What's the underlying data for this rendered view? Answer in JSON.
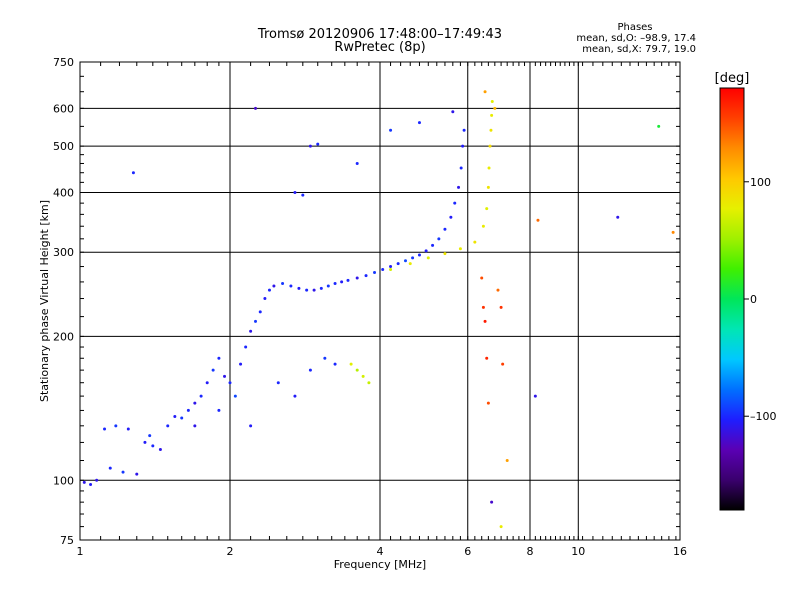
{
  "figure": {
    "title": "Tromsø 20120906 17:48:00–17:49:43",
    "subtitle": "RwPretec (8p)",
    "phases_label": "Phases",
    "phases_o": "mean, sd,O: –98.9, 17.4",
    "phases_x": "mean, sd,X:  79.7, 19.0"
  },
  "colorbar": {
    "label": "[deg]",
    "ticks": [
      {
        "value": 100,
        "label": "100"
      },
      {
        "value": 0,
        "label": "0"
      },
      {
        "value": -100,
        "label": "–100"
      }
    ],
    "range": [
      -180,
      180
    ],
    "colors": [
      "#000000",
      "#3a006e",
      "#5a00b4",
      "#1e1eff",
      "#0070ff",
      "#00c8ff",
      "#00e6b4",
      "#00e65a",
      "#40f000",
      "#a0f000",
      "#e6f000",
      "#ffc800",
      "#ff8c00",
      "#ff4000",
      "#ff0000"
    ]
  },
  "chart_data": {
    "type": "scatter",
    "xlabel": "Frequency [MHz]",
    "ylabel": "Stationary phase Virtual Height [km]",
    "xscale": "log",
    "yscale": "log",
    "xlim": [
      1,
      16
    ],
    "ylim": [
      75,
      750
    ],
    "xticks": [
      {
        "value": 1,
        "label": "1"
      },
      {
        "value": 2,
        "label": "2"
      },
      {
        "value": 4,
        "label": "4"
      },
      {
        "value": 6,
        "label": "6"
      },
      {
        "value": 8,
        "label": "8"
      },
      {
        "value": 10,
        "label": "10"
      },
      {
        "value": 16,
        "label": "16"
      }
    ],
    "yticks": [
      {
        "value": 75,
        "label": "75"
      },
      {
        "value": 100,
        "label": "100"
      },
      {
        "value": 200,
        "label": "200"
      },
      {
        "value": 300,
        "label": "300"
      },
      {
        "value": 400,
        "label": "400"
      },
      {
        "value": 500,
        "label": "500"
      },
      {
        "value": 600,
        "label": "600"
      },
      {
        "value": 750,
        "label": "750"
      }
    ],
    "xgrid": [
      1,
      2,
      4,
      6,
      8,
      10,
      16
    ],
    "ygrid": [
      75,
      100,
      200,
      300,
      400,
      500,
      600,
      750
    ],
    "grid": true,
    "color_by": "phase (deg)",
    "series": [
      {
        "points": [
          [
            1.02,
            99,
            -110
          ],
          [
            1.05,
            98,
            -105
          ],
          [
            1.08,
            100,
            -110
          ],
          [
            1.15,
            106,
            -100
          ],
          [
            1.22,
            104,
            -95
          ],
          [
            1.3,
            103,
            -110
          ],
          [
            1.12,
            128,
            -100
          ],
          [
            1.18,
            130,
            -95
          ],
          [
            1.25,
            128,
            -105
          ],
          [
            1.28,
            440,
            -100
          ],
          [
            1.35,
            120,
            -105
          ],
          [
            1.4,
            118,
            -100
          ],
          [
            1.45,
            116,
            -110
          ],
          [
            1.38,
            124,
            -95
          ],
          [
            1.5,
            130,
            -100
          ],
          [
            1.55,
            136,
            -105
          ],
          [
            1.6,
            135,
            -95
          ],
          [
            1.65,
            140,
            -100
          ],
          [
            1.7,
            145,
            -110
          ],
          [
            1.75,
            150,
            -100
          ],
          [
            1.8,
            160,
            -105
          ],
          [
            1.85,
            170,
            -95
          ],
          [
            1.9,
            180,
            -100
          ],
          [
            1.95,
            165,
            -110
          ],
          [
            2.0,
            160,
            -100
          ],
          [
            2.05,
            150,
            -90
          ],
          [
            2.1,
            175,
            -105
          ],
          [
            2.15,
            190,
            -100
          ],
          [
            2.2,
            205,
            -110
          ],
          [
            2.25,
            215,
            -95
          ],
          [
            2.3,
            225,
            -100
          ],
          [
            2.35,
            240,
            -105
          ],
          [
            2.4,
            250,
            -100
          ],
          [
            2.45,
            255,
            -110
          ],
          [
            2.55,
            258,
            -95
          ],
          [
            2.65,
            255,
            -100
          ],
          [
            2.75,
            252,
            -105
          ],
          [
            2.85,
            250,
            -100
          ],
          [
            2.95,
            250,
            -110
          ],
          [
            3.05,
            252,
            -100
          ],
          [
            3.15,
            255,
            -95
          ],
          [
            3.25,
            258,
            -100
          ],
          [
            3.35,
            260,
            -105
          ],
          [
            3.45,
            262,
            -100
          ],
          [
            3.6,
            265,
            -110
          ],
          [
            3.75,
            268,
            -100
          ],
          [
            3.9,
            272,
            -95
          ],
          [
            4.05,
            276,
            -100
          ],
          [
            4.2,
            280,
            -105
          ],
          [
            4.35,
            284,
            -100
          ],
          [
            4.5,
            288,
            -90
          ],
          [
            4.65,
            292,
            -95
          ],
          [
            4.8,
            296,
            -100
          ],
          [
            4.95,
            302,
            -105
          ],
          [
            5.1,
            310,
            -100
          ],
          [
            5.25,
            320,
            -95
          ],
          [
            5.4,
            335,
            -100
          ],
          [
            5.55,
            355,
            -105
          ],
          [
            5.65,
            380,
            -100
          ],
          [
            5.75,
            410,
            -110
          ],
          [
            5.82,
            450,
            -100
          ],
          [
            5.86,
            500,
            -105
          ],
          [
            5.9,
            540,
            -100
          ],
          [
            5.6,
            590,
            -110
          ],
          [
            4.8,
            560,
            -100
          ],
          [
            4.2,
            540,
            -95
          ],
          [
            3.6,
            460,
            -100
          ],
          [
            2.7,
            400,
            -105
          ],
          [
            2.8,
            395,
            -100
          ],
          [
            2.9,
            500,
            -110
          ],
          [
            3.0,
            505,
            -100
          ],
          [
            2.25,
            600,
            -120
          ],
          [
            2.5,
            160,
            -100
          ],
          [
            2.7,
            150,
            -105
          ],
          [
            2.9,
            170,
            -100
          ],
          [
            3.1,
            180,
            -95
          ],
          [
            3.25,
            175,
            -100
          ],
          [
            1.7,
            130,
            -110
          ],
          [
            1.9,
            140,
            -100
          ],
          [
            2.2,
            130,
            -105
          ]
        ]
      },
      {
        "points": [
          [
            4.2,
            276,
            70
          ],
          [
            4.6,
            284,
            80
          ],
          [
            5.0,
            292,
            75
          ],
          [
            5.4,
            298,
            85
          ],
          [
            5.8,
            305,
            80
          ],
          [
            6.2,
            315,
            85
          ],
          [
            6.45,
            340,
            80
          ],
          [
            6.55,
            370,
            75
          ],
          [
            6.6,
            410,
            85
          ],
          [
            6.62,
            450,
            80
          ],
          [
            6.65,
            500,
            90
          ],
          [
            6.68,
            540,
            85
          ],
          [
            6.7,
            580,
            80
          ],
          [
            6.72,
            620,
            75
          ],
          [
            6.5,
            650,
            120
          ],
          [
            6.8,
            600,
            110
          ],
          [
            3.6,
            170,
            60
          ],
          [
            3.7,
            165,
            70
          ],
          [
            3.8,
            160,
            65
          ],
          [
            3.5,
            175,
            75
          ]
        ]
      },
      {
        "points": [
          [
            6.4,
            265,
            150
          ],
          [
            6.45,
            230,
            160
          ],
          [
            6.5,
            215,
            170
          ],
          [
            6.55,
            180,
            165
          ],
          [
            6.6,
            145,
            150
          ],
          [
            6.7,
            90,
            -120
          ],
          [
            6.9,
            250,
            140
          ],
          [
            7.0,
            230,
            160
          ],
          [
            7.05,
            175,
            155
          ],
          [
            7.2,
            110,
            120
          ],
          [
            8.3,
            350,
            140
          ],
          [
            12.0,
            355,
            -110
          ],
          [
            14.5,
            550,
            10
          ],
          [
            15.5,
            330,
            130
          ],
          [
            8.2,
            150,
            -110
          ],
          [
            7.0,
            80,
            80
          ]
        ]
      }
    ]
  }
}
